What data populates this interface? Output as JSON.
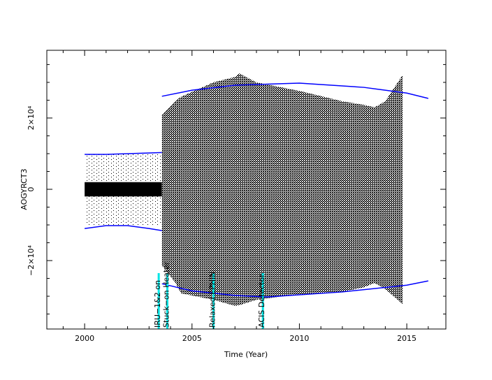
{
  "chart_data": {
    "type": "band",
    "xlabel": "Time (Year)",
    "ylabel": "AOGYRCT3",
    "xlim": [
      1998.24,
      2016.82
    ],
    "ylim": [
      -39200,
      39000
    ],
    "xticks": [
      2000,
      2005,
      2010,
      2015
    ],
    "xminorticks": [
      1999,
      2001,
      2002,
      2003,
      2004,
      2006,
      2007,
      2008,
      2009,
      2011,
      2012,
      2013,
      2014,
      2016
    ],
    "yticks": [
      {
        "value": -20000,
        "label": "−2×10⁴"
      },
      0,
      {
        "value": 20000,
        "label": "2×10⁴"
      }
    ],
    "yminorticks": [
      -35000,
      -30000,
      -25000,
      -15000,
      -10000,
      -5000,
      5000,
      10000,
      15000,
      25000,
      30000,
      35000
    ],
    "bands": [
      {
        "pattern": "sparse",
        "x": [
          2000,
          2003.6
        ],
        "low": [
          -10000,
          -10000
        ],
        "high": [
          10000,
          10000
        ]
      },
      {
        "pattern": "solid",
        "x": [
          2000,
          2003.6
        ],
        "low": [
          -2000,
          -2000
        ],
        "high": [
          2000,
          2000
        ]
      },
      {
        "pattern": "dense",
        "x": [
          2003.6,
          2004.2,
          2004.5,
          2006,
          2007,
          2007.2,
          2008,
          2009,
          2010,
          2012,
          2013,
          2013.5,
          2014,
          2014.8
        ],
        "low": [
          -21400,
          -26000,
          -29200,
          -31000,
          -32700,
          -32500,
          -31000,
          -30200,
          -29500,
          -28800,
          -27500,
          -26300,
          -28000,
          -32200
        ],
        "high": [
          20800,
          24700,
          26000,
          30000,
          31500,
          32500,
          30000,
          28800,
          27600,
          24700,
          23700,
          23000,
          24700,
          32000
        ]
      }
    ],
    "series": [
      {
        "color": "#0000ff",
        "x": [
          2000,
          2001,
          2002,
          2003,
          2003.6
        ],
        "values": [
          9800,
          9800,
          10000,
          10200,
          10300
        ]
      },
      {
        "color": "#0000ff",
        "x": [
          2000,
          2001,
          2002,
          2003,
          2003.6
        ],
        "values": [
          -11000,
          -10200,
          -10200,
          -11000,
          -11600
        ]
      },
      {
        "color": "#0000ff",
        "x": [
          2003.6,
          2005,
          2007,
          2010,
          2013,
          2015,
          2016
        ],
        "values": [
          26100,
          27800,
          29200,
          29800,
          28600,
          27000,
          25500
        ]
      },
      {
        "color": "#0000ff",
        "x": [
          2003.6,
          2005,
          2007,
          2008.5,
          2012,
          2015,
          2016
        ],
        "values": [
          -26500,
          -28500,
          -29800,
          -30200,
          -28800,
          -26900,
          -25700
        ]
      }
    ],
    "annotation_color": "#00e5e5",
    "annotations": [
      {
        "text": "IRU−1&2 on",
        "x": 2003.45
      },
      {
        "text": "Stuck−on Heater",
        "x": 2003.85
      },
      {
        "text": "Relaxed EPHIN",
        "x": 2006.0
      },
      {
        "text": "ACIS Detector",
        "x": 2008.3
      }
    ]
  }
}
